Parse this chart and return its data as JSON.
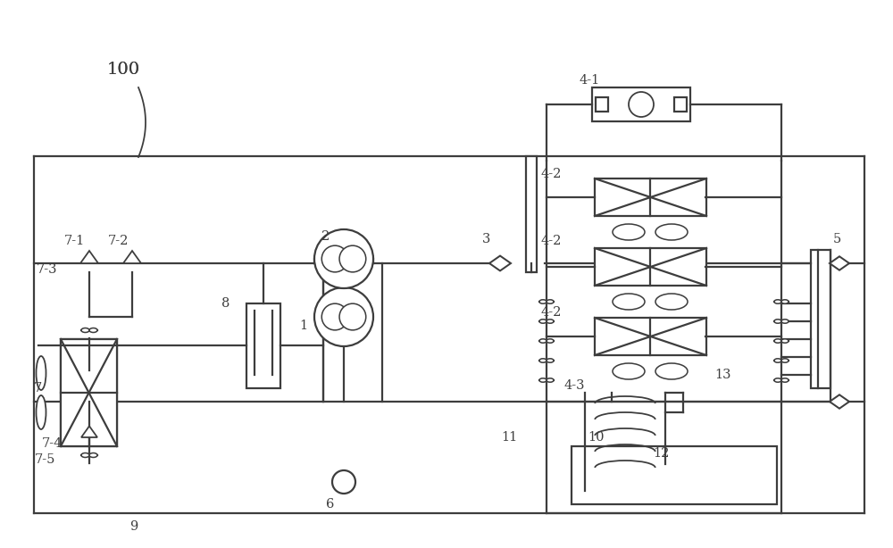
{
  "bg_color": "#ffffff",
  "line_color": "#3d3d3d",
  "lw": 1.6,
  "figsize": [
    10.0,
    6.14
  ],
  "dpi": 100
}
